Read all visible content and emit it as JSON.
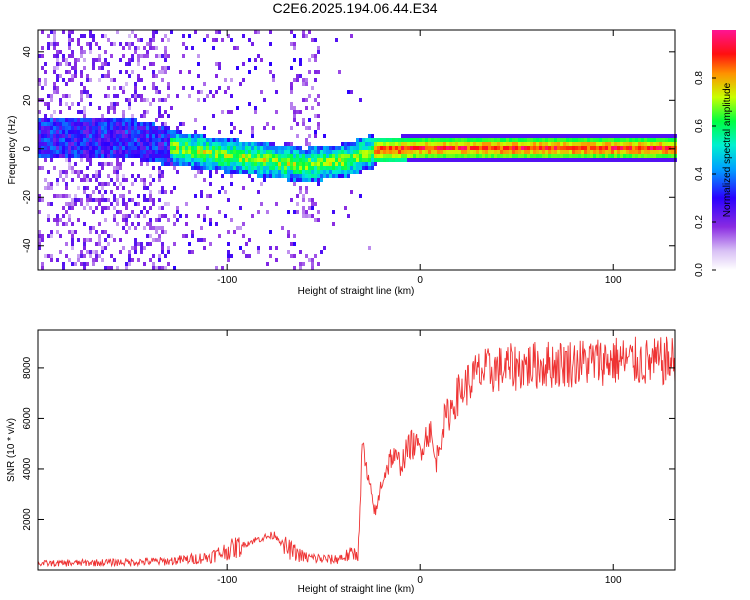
{
  "title": "C2E6.2025.194.06.44.E34",
  "chart_data": [
    {
      "type": "heatmap",
      "xlabel": "Height of straight line (km)",
      "ylabel": "Frequency (Hz)",
      "xlim": [
        -198,
        132
      ],
      "ylim": [
        -50,
        49
      ],
      "xticks": [
        -100,
        0,
        100
      ],
      "yticks": [
        -40,
        -20,
        0,
        20,
        40
      ],
      "grid": false,
      "colorbar": {
        "label": "Normalized spectral amplitude",
        "range": [
          0,
          1
        ],
        "ticks": [
          "0.0",
          "0.2",
          "0.4",
          "0.6",
          "0.8"
        ],
        "colormap": [
          "#ffffff",
          "#c9a8f0",
          "#8a2be2",
          "#3a00ff",
          "#0070ff",
          "#00e0e0",
          "#00ff40",
          "#c8ff00",
          "#ff8c00",
          "#ff0000",
          "#ff1493"
        ]
      },
      "ridge": {
        "description_points": [
          {
            "x": -198,
            "f": 5
          },
          {
            "x": -150,
            "f": 5
          },
          {
            "x": -120,
            "f": 0
          },
          {
            "x": -90,
            "f": -3
          },
          {
            "x": -60,
            "f": -6
          },
          {
            "x": -40,
            "f": -4
          },
          {
            "x": -25,
            "f": 0
          },
          {
            "x": 0,
            "f": 1
          },
          {
            "x": 132,
            "f": 1
          }
        ]
      }
    },
    {
      "type": "line",
      "xlabel": "Height of straight line (km)",
      "ylabel": "SNR (10 * v/v)",
      "xlim": [
        -198,
        132
      ],
      "ylim": [
        0,
        9500
      ],
      "xticks": [
        -100,
        0,
        100
      ],
      "yticks": [
        2000,
        4000,
        6000,
        8000
      ],
      "grid": false,
      "series": [
        {
          "color": "#ee3333",
          "points": [
            {
              "x": -198,
              "y": 250
            },
            {
              "x": -160,
              "y": 300
            },
            {
              "x": -130,
              "y": 350
            },
            {
              "x": -110,
              "y": 500
            },
            {
              "x": -95,
              "y": 900
            },
            {
              "x": -85,
              "y": 1200
            },
            {
              "x": -75,
              "y": 1400
            },
            {
              "x": -70,
              "y": 900
            },
            {
              "x": -60,
              "y": 500
            },
            {
              "x": -45,
              "y": 400
            },
            {
              "x": -32,
              "y": 700
            },
            {
              "x": -30,
              "y": 5000
            },
            {
              "x": -27,
              "y": 3500
            },
            {
              "x": -23,
              "y": 2200
            },
            {
              "x": -20,
              "y": 3500
            },
            {
              "x": -15,
              "y": 4500
            },
            {
              "x": -10,
              "y": 4200
            },
            {
              "x": -5,
              "y": 5000
            },
            {
              "x": 0,
              "y": 4800
            },
            {
              "x": 5,
              "y": 5600
            },
            {
              "x": 8,
              "y": 4200
            },
            {
              "x": 12,
              "y": 5800
            },
            {
              "x": 20,
              "y": 7000
            },
            {
              "x": 30,
              "y": 7800
            },
            {
              "x": 45,
              "y": 8000
            },
            {
              "x": 60,
              "y": 8100
            },
            {
              "x": 80,
              "y": 8200
            },
            {
              "x": 100,
              "y": 8300
            },
            {
              "x": 120,
              "y": 8200
            },
            {
              "x": 132,
              "y": 8300
            }
          ]
        }
      ]
    }
  ]
}
